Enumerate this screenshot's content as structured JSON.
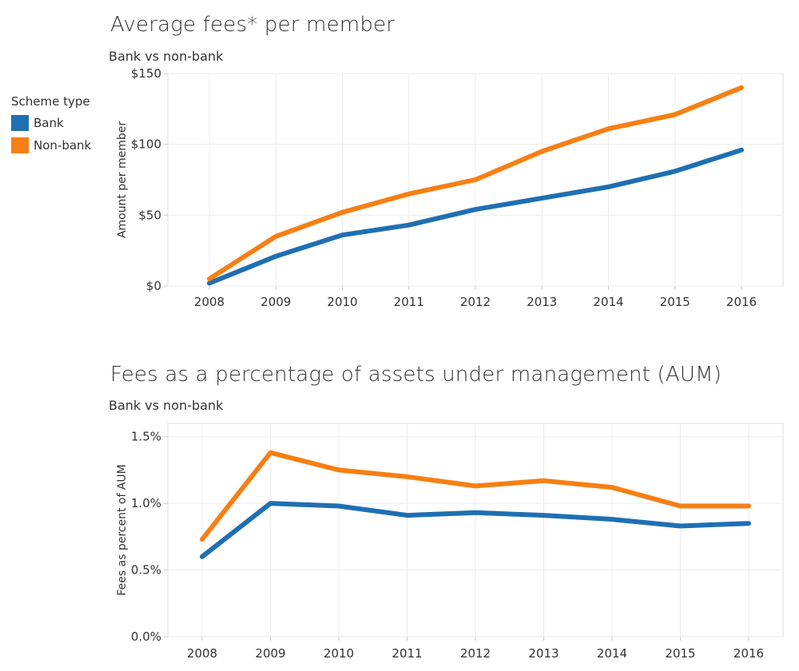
{
  "legend": {
    "title": "Scheme type",
    "items": [
      {
        "label": "Bank",
        "color": "#1f6fb3"
      },
      {
        "label": "Non-bank",
        "color": "#f77f14"
      }
    ]
  },
  "chart_data": [
    {
      "type": "line",
      "title": "Average fees* per member",
      "subtitle": "Bank vs non-bank",
      "ylabel": "Amount per member",
      "x": [
        "2008",
        "2009",
        "2010",
        "2011",
        "2012",
        "2013",
        "2014",
        "2015",
        "2016"
      ],
      "ylim": [
        0,
        150
      ],
      "yticks": [
        {
          "v": 0,
          "label": "$0"
        },
        {
          "v": 50,
          "label": "$50"
        },
        {
          "v": 100,
          "label": "$100"
        },
        {
          "v": 150,
          "label": "$150"
        }
      ],
      "grid": true,
      "series": [
        {
          "name": "Bank",
          "color": "#1f6fb3",
          "values": [
            2,
            21,
            36,
            43,
            54,
            62,
            70,
            81,
            96
          ]
        },
        {
          "name": "Non-bank",
          "color": "#f77f14",
          "values": [
            5,
            35,
            52,
            65,
            75,
            95,
            111,
            121,
            140
          ]
        }
      ]
    },
    {
      "type": "line",
      "title": "Fees as a percentage of assets under management (AUM)",
      "subtitle": "Bank vs non-bank",
      "ylabel": "Fees as percent of AUM",
      "x": [
        "2008",
        "2009",
        "2010",
        "2011",
        "2012",
        "2013",
        "2014",
        "2015",
        "2016"
      ],
      "ylim": [
        0,
        1.6
      ],
      "yticks": [
        {
          "v": 0,
          "label": "0.0%"
        },
        {
          "v": 0.5,
          "label": "0.5%"
        },
        {
          "v": 1.0,
          "label": "1.0%"
        },
        {
          "v": 1.5,
          "label": "1.5%"
        }
      ],
      "grid": true,
      "series": [
        {
          "name": "Bank",
          "color": "#1f6fb3",
          "values": [
            0.6,
            1.0,
            0.98,
            0.91,
            0.93,
            0.91,
            0.88,
            0.83,
            0.85
          ]
        },
        {
          "name": "Non-bank",
          "color": "#f77f14",
          "values": [
            0.73,
            1.38,
            1.25,
            1.2,
            1.13,
            1.17,
            1.12,
            0.98,
            0.98
          ]
        }
      ]
    }
  ]
}
